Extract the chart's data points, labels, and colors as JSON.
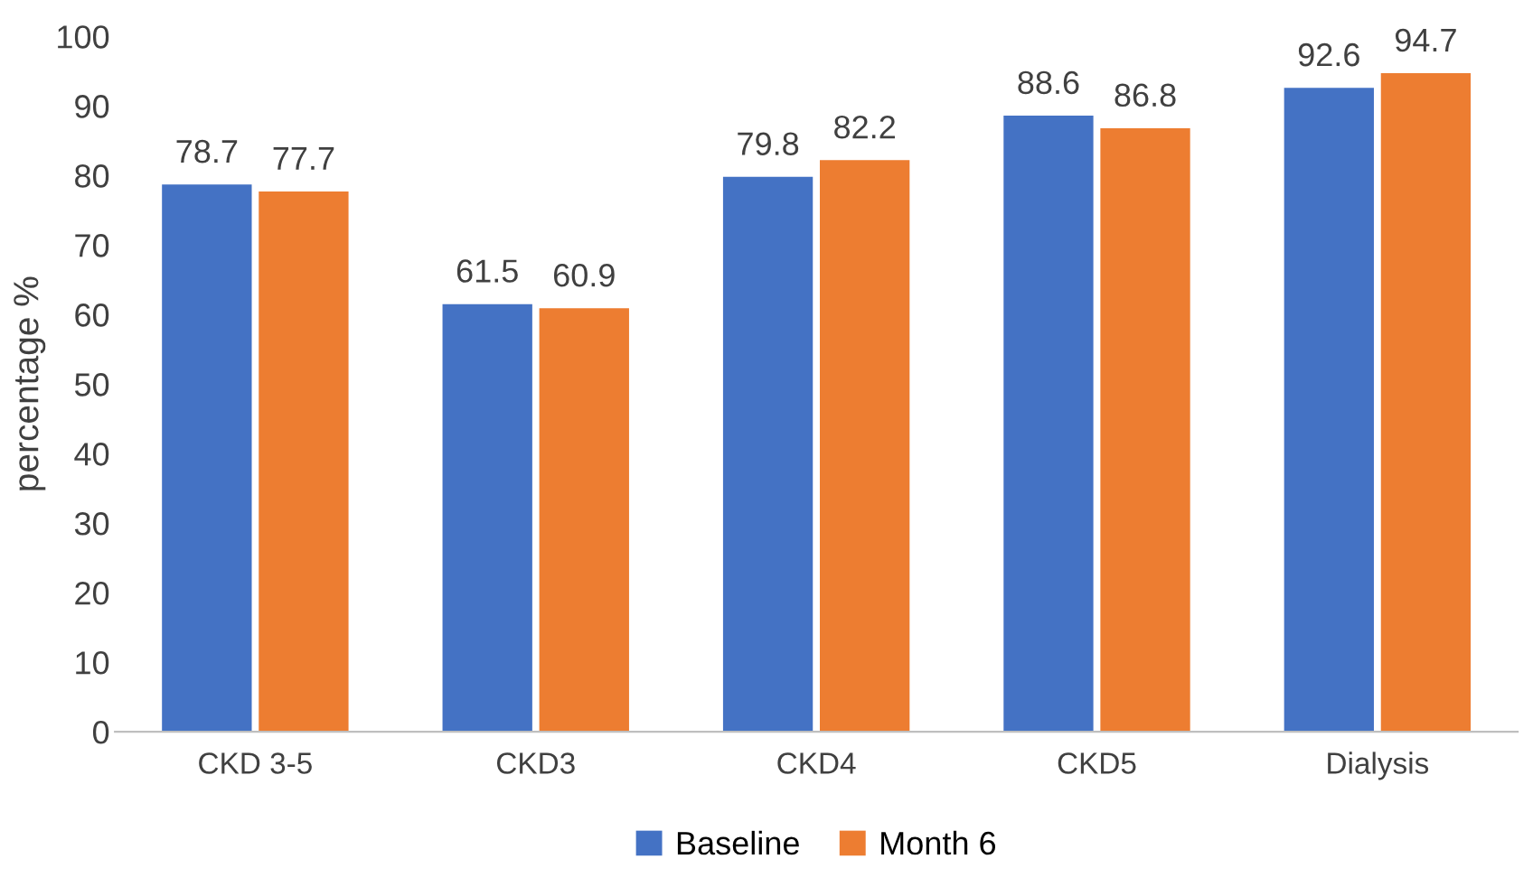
{
  "chart_data": {
    "type": "bar",
    "ylabel": "percentage %",
    "categories": [
      "CKD 3-5",
      "CKD3",
      "CKD4",
      "CKD5",
      "Dialysis"
    ],
    "series": [
      {
        "name": "Baseline",
        "color": "#4472c4",
        "values": [
          78.7,
          61.5,
          79.8,
          88.6,
          92.6
        ]
      },
      {
        "name": "Month 6",
        "color": "#ed7d31",
        "values": [
          77.7,
          60.9,
          82.2,
          86.8,
          94.7
        ]
      }
    ],
    "ylim": [
      0,
      100
    ],
    "yticks": [
      0,
      10,
      20,
      30,
      40,
      50,
      60,
      70,
      80,
      90,
      100
    ],
    "data_labels": true,
    "legend": "bottom",
    "grid": false
  }
}
